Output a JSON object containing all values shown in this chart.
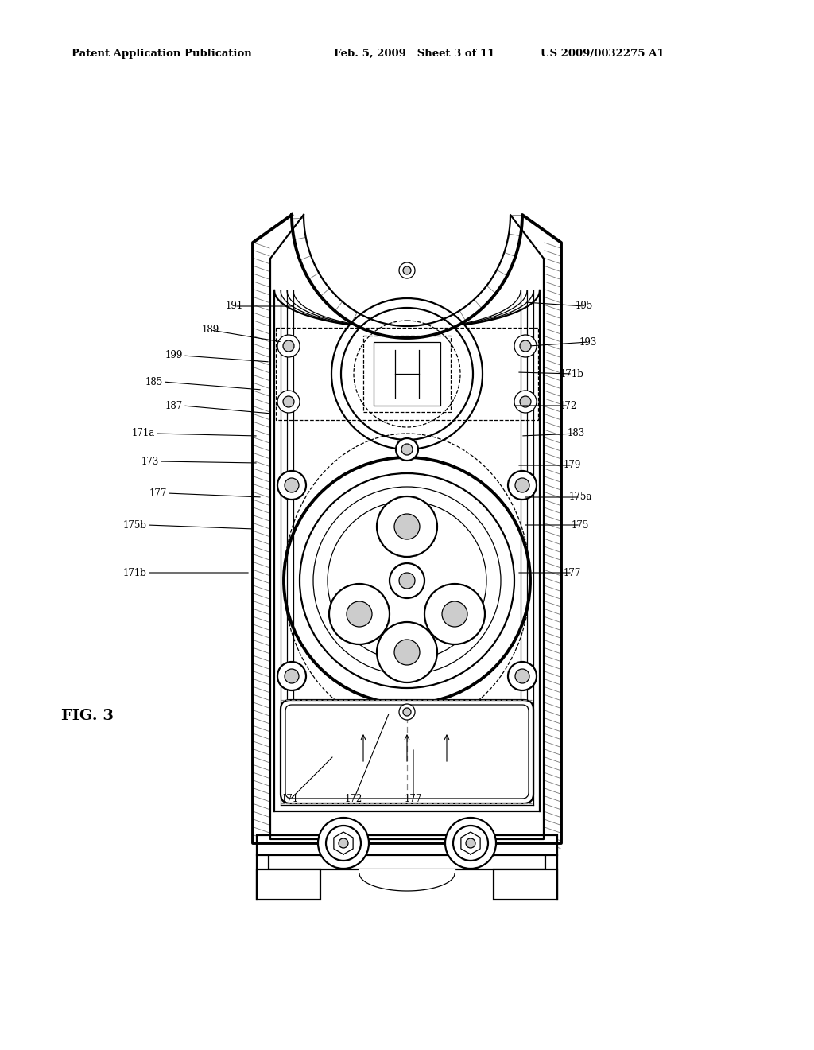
{
  "bg_color": "#ffffff",
  "header_left": "Patent Application Publication",
  "header_mid": "Feb. 5, 2009   Sheet 3 of 11",
  "header_right": "US 2009/0032275 A1",
  "fig_label": "FIG. 3",
  "label_fontsize": 8.5,
  "fig_label_fontsize": 14,
  "title_fontsize": 9.5
}
